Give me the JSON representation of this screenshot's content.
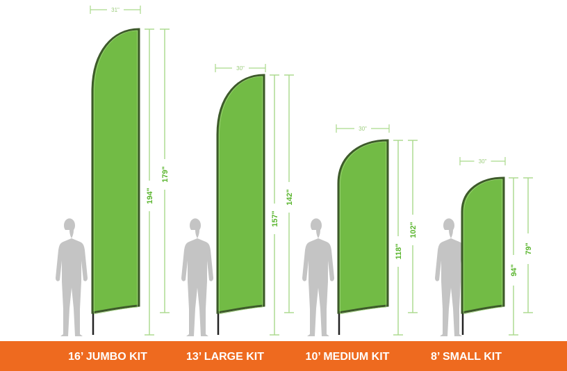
{
  "colors": {
    "flag_fill": "#72bb45",
    "flag_border": "#3d5a2a",
    "dimension": "#a9d98a",
    "dimension_text": "#5ab52e",
    "person": "#c4c4c4",
    "banner": "#ee6a1f"
  },
  "kits": [
    {
      "label": "16’ JUMBO KIT",
      "width": "31\"",
      "total_height": "194\"",
      "flag_height": "179\""
    },
    {
      "label": "13’ LARGE KIT",
      "width": "30\"",
      "total_height": "157\"",
      "flag_height": "142\""
    },
    {
      "label": "10’ MEDIUM KIT",
      "width": "30\"",
      "total_height": "118\"",
      "flag_height": "102\""
    },
    {
      "label": "8’ SMALL KIT",
      "width": "30\"",
      "total_height": "94\"",
      "flag_height": "79\""
    }
  ]
}
